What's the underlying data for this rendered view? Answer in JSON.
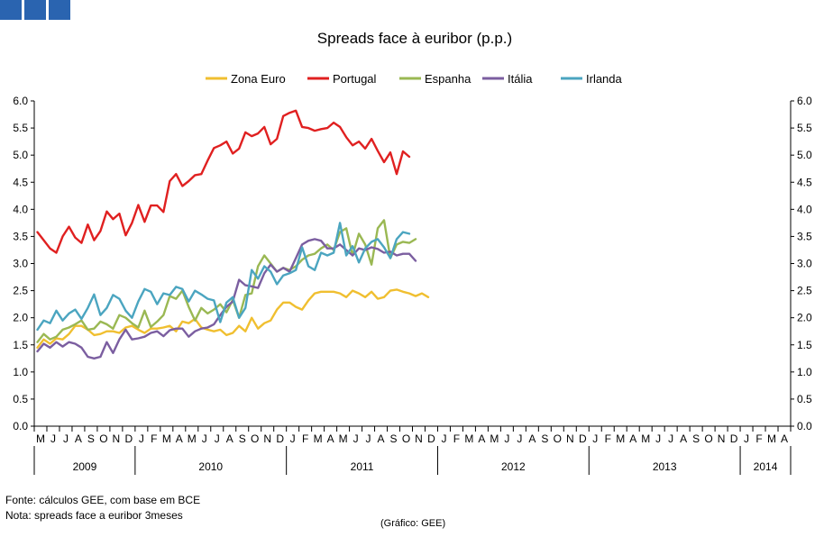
{
  "header": {
    "logo_squares": 3,
    "logo_color": "#2a64b0"
  },
  "notes": {
    "source": "Fonte: cálculos GEE, com base em BCE",
    "note": "Nota: spreads face a euribor 3meses",
    "credit": "(Gráfico: GEE)"
  },
  "chart_data": {
    "type": "line",
    "title": "Spreads face à euribor (p.p.)",
    "ylim": [
      0,
      6
    ],
    "yticks": [
      "0.0",
      "0.5",
      "1.0",
      "1.5",
      "2.0",
      "2.5",
      "3.0",
      "3.5",
      "4.0",
      "4.5",
      "5.0",
      "5.5",
      "6.0"
    ],
    "dual_y_axis": true,
    "grid": false,
    "legend": "top",
    "month_labels": [
      "M",
      "J",
      "J",
      "A",
      "S",
      "O",
      "N",
      "D",
      "J",
      "F",
      "M",
      "A",
      "M",
      "J",
      "J",
      "A",
      "S",
      "O",
      "N",
      "D",
      "J",
      "F",
      "M",
      "A",
      "M",
      "J",
      "J",
      "A",
      "S",
      "O",
      "N",
      "D",
      "J",
      "F",
      "M",
      "A",
      "M",
      "J",
      "J",
      "A",
      "S",
      "O",
      "N",
      "D",
      "J",
      "F",
      "M",
      "A",
      "M",
      "J",
      "J",
      "A",
      "S",
      "O",
      "N",
      "D",
      "J",
      "F",
      "M",
      "A"
    ],
    "years": [
      {
        "label": "2009",
        "start": 0,
        "count": 8
      },
      {
        "label": "2010",
        "start": 8,
        "count": 12
      },
      {
        "label": "2011",
        "start": 20,
        "count": 12
      },
      {
        "label": "2012",
        "start": 32,
        "count": 12
      },
      {
        "label": "2013",
        "start": 44,
        "count": 12
      },
      {
        "label": "2014",
        "start": 56,
        "count": 4
      }
    ],
    "points_per_month": 2,
    "series": [
      {
        "name": "Zona Euro",
        "color": "#f0bf30",
        "values": [
          1.45,
          1.6,
          1.52,
          1.62,
          1.6,
          1.7,
          1.85,
          1.85,
          1.78,
          1.68,
          1.7,
          1.75,
          1.75,
          1.72,
          1.82,
          1.85,
          1.78,
          1.72,
          1.8,
          1.8,
          1.82,
          1.85,
          1.75,
          1.93,
          1.9,
          1.98,
          1.82,
          1.78,
          1.75,
          1.78,
          1.68,
          1.72,
          1.85,
          1.75,
          2.0,
          1.8,
          1.9,
          1.95,
          2.15,
          2.28,
          2.28,
          2.2,
          2.15,
          2.32,
          2.45,
          2.48,
          2.48,
          2.48,
          2.45,
          2.38,
          2.5,
          2.45,
          2.38,
          2.48,
          2.35,
          2.38,
          2.5,
          2.52,
          2.48,
          2.45,
          2.4,
          2.45,
          2.38
        ]
      },
      {
        "name": "Portugal",
        "color": "#e02020",
        "values": [
          3.58,
          3.43,
          3.28,
          3.2,
          3.5,
          3.68,
          3.48,
          3.38,
          3.72,
          3.43,
          3.6,
          3.96,
          3.82,
          3.92,
          3.52,
          3.75,
          4.08,
          3.77,
          4.07,
          4.07,
          3.95,
          4.52,
          4.65,
          4.43,
          4.52,
          4.63,
          4.65,
          4.9,
          5.13,
          5.18,
          5.25,
          5.03,
          5.12,
          5.42,
          5.35,
          5.4,
          5.52,
          5.2,
          5.3,
          5.72,
          5.78,
          5.82,
          5.52,
          5.5,
          5.45,
          5.48,
          5.5,
          5.6,
          5.52,
          5.33,
          5.18,
          5.25,
          5.12,
          5.3,
          5.08,
          4.87,
          5.05,
          4.65,
          5.07,
          4.97
        ]
      },
      {
        "name": "Espanha",
        "color": "#9ab853",
        "values": [
          1.55,
          1.7,
          1.6,
          1.65,
          1.78,
          1.82,
          1.88,
          1.95,
          1.78,
          1.8,
          1.93,
          1.88,
          1.8,
          2.05,
          2.0,
          1.9,
          1.82,
          2.13,
          1.83,
          1.93,
          2.05,
          2.4,
          2.35,
          2.5,
          2.2,
          1.95,
          2.18,
          2.08,
          2.15,
          2.25,
          2.1,
          2.33,
          2.0,
          2.42,
          2.45,
          2.95,
          3.15,
          3.0,
          2.85,
          2.92,
          2.88,
          2.95,
          3.07,
          3.15,
          3.18,
          3.28,
          3.35,
          3.25,
          3.58,
          3.65,
          3.15,
          3.55,
          3.35,
          2.98,
          3.65,
          3.8,
          3.1,
          3.35,
          3.4,
          3.38,
          3.45
        ]
      },
      {
        "name": "Itália",
        "color": "#7b5ea0",
        "values": [
          1.38,
          1.52,
          1.45,
          1.55,
          1.47,
          1.55,
          1.52,
          1.45,
          1.28,
          1.25,
          1.28,
          1.55,
          1.35,
          1.6,
          1.78,
          1.6,
          1.62,
          1.65,
          1.72,
          1.75,
          1.66,
          1.77,
          1.8,
          1.8,
          1.65,
          1.75,
          1.8,
          1.82,
          1.88,
          2.05,
          2.2,
          2.3,
          2.7,
          2.6,
          2.58,
          2.55,
          2.82,
          2.98,
          2.85,
          2.92,
          2.85,
          3.1,
          3.35,
          3.42,
          3.45,
          3.42,
          3.28,
          3.28,
          3.35,
          3.25,
          3.15,
          3.28,
          3.25,
          3.3,
          3.27,
          3.2,
          3.22,
          3.15,
          3.18,
          3.18,
          3.05
        ]
      },
      {
        "name": "Irlanda",
        "color": "#4ba5c0",
        "values": [
          1.78,
          1.95,
          1.9,
          2.13,
          1.95,
          2.08,
          2.15,
          1.98,
          2.18,
          2.43,
          2.05,
          2.18,
          2.42,
          2.35,
          2.13,
          2.0,
          2.3,
          2.53,
          2.48,
          2.25,
          2.45,
          2.42,
          2.57,
          2.53,
          2.3,
          2.5,
          2.43,
          2.35,
          2.32,
          1.92,
          2.28,
          2.38,
          2.0,
          2.18,
          2.88,
          2.72,
          2.95,
          2.85,
          2.62,
          2.78,
          2.82,
          2.88,
          3.3,
          2.95,
          2.88,
          3.2,
          3.15,
          3.2,
          3.75,
          3.15,
          3.32,
          3.02,
          3.28,
          3.4,
          3.45,
          3.3,
          3.1,
          3.45,
          3.58,
          3.55
        ]
      }
    ]
  }
}
